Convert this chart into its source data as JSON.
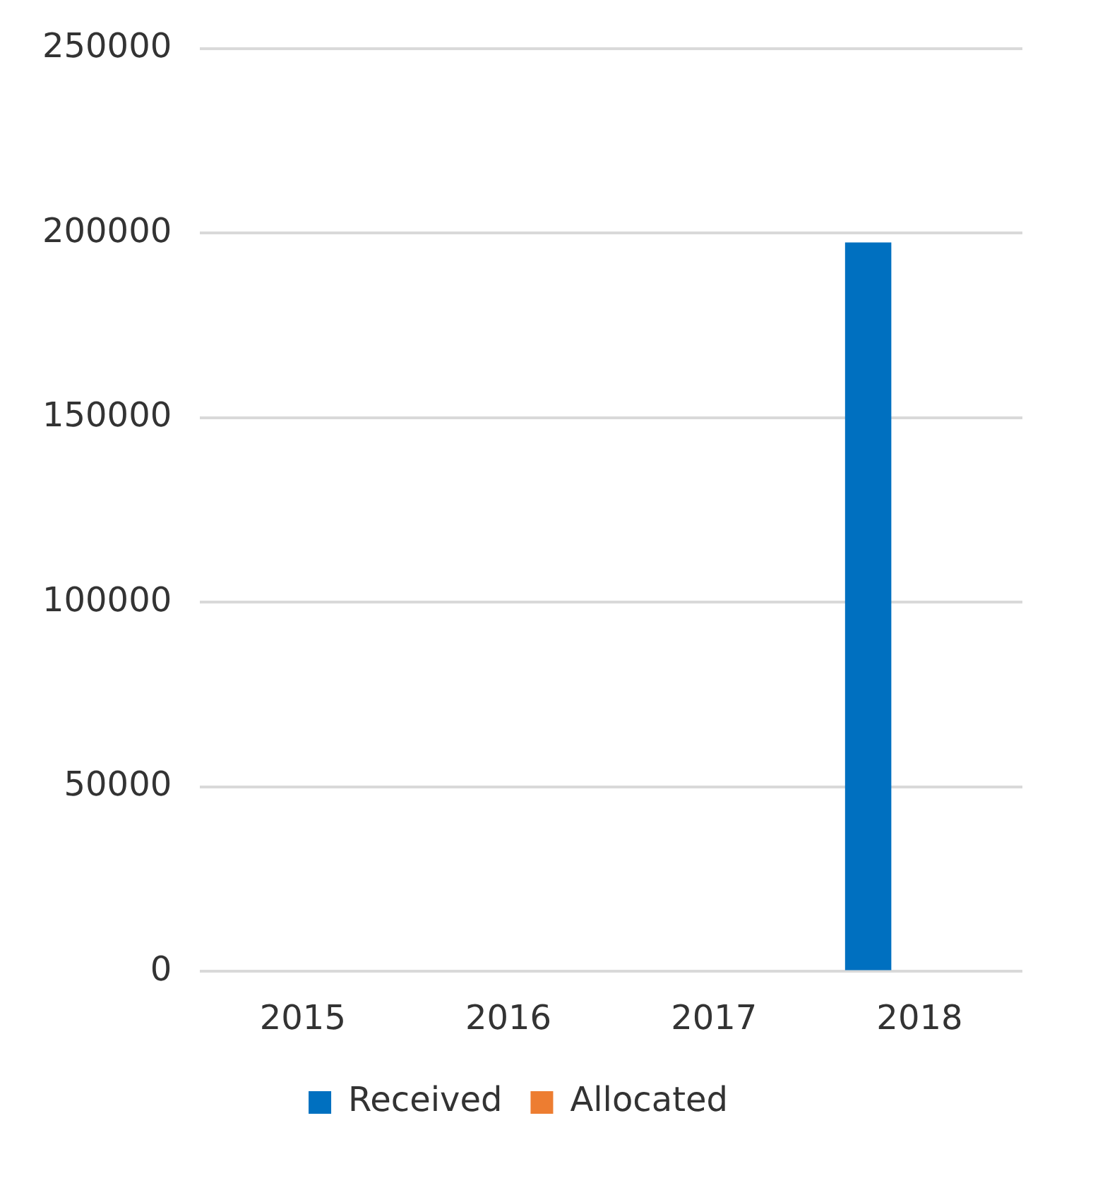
{
  "chart_data": {
    "type": "bar",
    "categories": [
      "2015",
      "2016",
      "2017",
      "2018"
    ],
    "series": [
      {
        "name": "Received",
        "color": "#0070c0",
        "values": [
          0,
          0,
          0,
          197500
        ]
      },
      {
        "name": "Allocated",
        "color": "#ed7d31",
        "values": [
          0,
          0,
          0,
          0
        ]
      }
    ],
    "ylim": [
      0,
      250000
    ],
    "yticks": [
      0,
      50000,
      100000,
      150000,
      200000,
      250000
    ],
    "grid": "y",
    "legend": "bottom"
  }
}
